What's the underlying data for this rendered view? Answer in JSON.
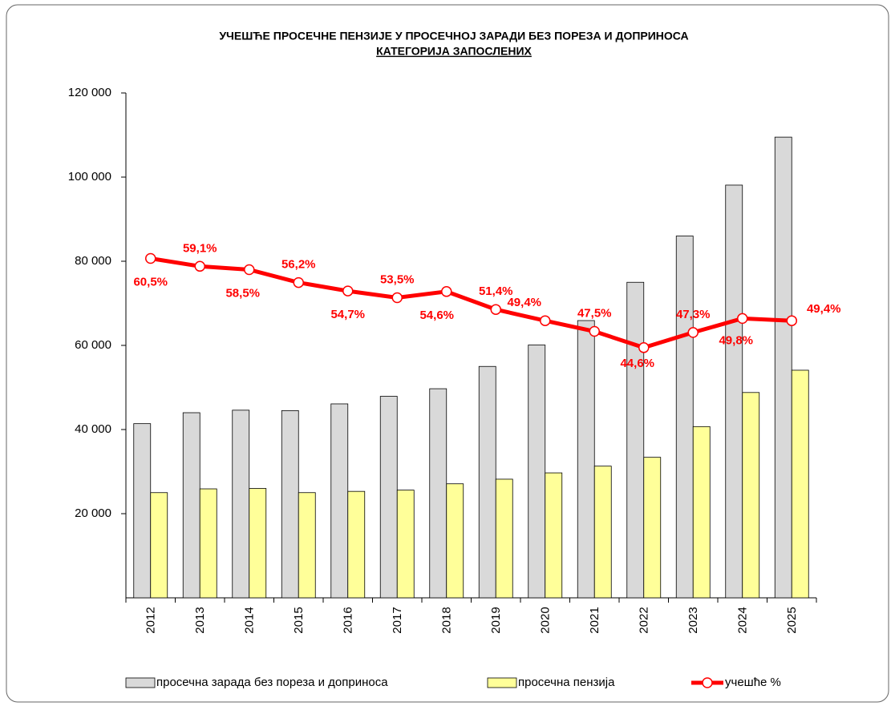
{
  "chart_data": {
    "type": "bar_line",
    "title": "УЧЕШЋЕ ПРОСЕЧНЕ ПЕНЗИЈЕ У ПРОСЕЧНОЈ ЗАРАДИ БЕЗ ПОРЕЗА И ДОПРИНОСА",
    "subtitle": "КАТЕГОРИЈА ЗАПОСЛЕНИХ",
    "categories": [
      "2012",
      "2013",
      "2014",
      "2015",
      "2016",
      "2017",
      "2018",
      "2019",
      "2020",
      "2021",
      "2022",
      "2023",
      "2024",
      "2025"
    ],
    "series": [
      {
        "name": "просечна зарада без пореза и доприноса",
        "color": "#d9d9d9",
        "type": "bar",
        "values": [
          41400,
          44000,
          44600,
          44500,
          46100,
          47900,
          49700,
          55000,
          60100,
          65900,
          75000,
          86000,
          98100,
          109500
        ]
      },
      {
        "name": "просечна пензија",
        "color": "#ffff99",
        "type": "bar",
        "values": [
          25000,
          25900,
          26000,
          25000,
          25300,
          25600,
          27100,
          28200,
          29700,
          31300,
          33400,
          40700,
          48800,
          54100
        ]
      },
      {
        "name": "учешће %",
        "color": "#ff0000",
        "type": "line",
        "axis": "y2",
        "values": [
          60.5,
          59.1,
          58.5,
          56.2,
          54.7,
          53.5,
          54.6,
          51.4,
          49.4,
          47.5,
          44.6,
          47.3,
          49.8,
          49.4
        ],
        "value_labels": [
          "60,5%",
          "59,1%",
          "58,5%",
          "56,2%",
          "54,7%",
          "53,5%",
          "54,6%",
          "51,4%",
          "49,4%",
          "47,5%",
          "44,6%",
          "47,3%",
          "49,8%",
          "49,4%"
        ]
      }
    ],
    "ylim": [
      0,
      120000
    ],
    "yticks": [
      {
        "value": 20000,
        "label": "20 000"
      },
      {
        "value": 40000,
        "label": "40 000"
      },
      {
        "value": 60000,
        "label": "60 000"
      },
      {
        "value": 80000,
        "label": "80 000"
      },
      {
        "value": 100000,
        "label": "100 000"
      },
      {
        "value": 120000,
        "label": "120 000"
      }
    ],
    "y2lim": [
      0,
      90
    ],
    "legend": "bottom"
  }
}
